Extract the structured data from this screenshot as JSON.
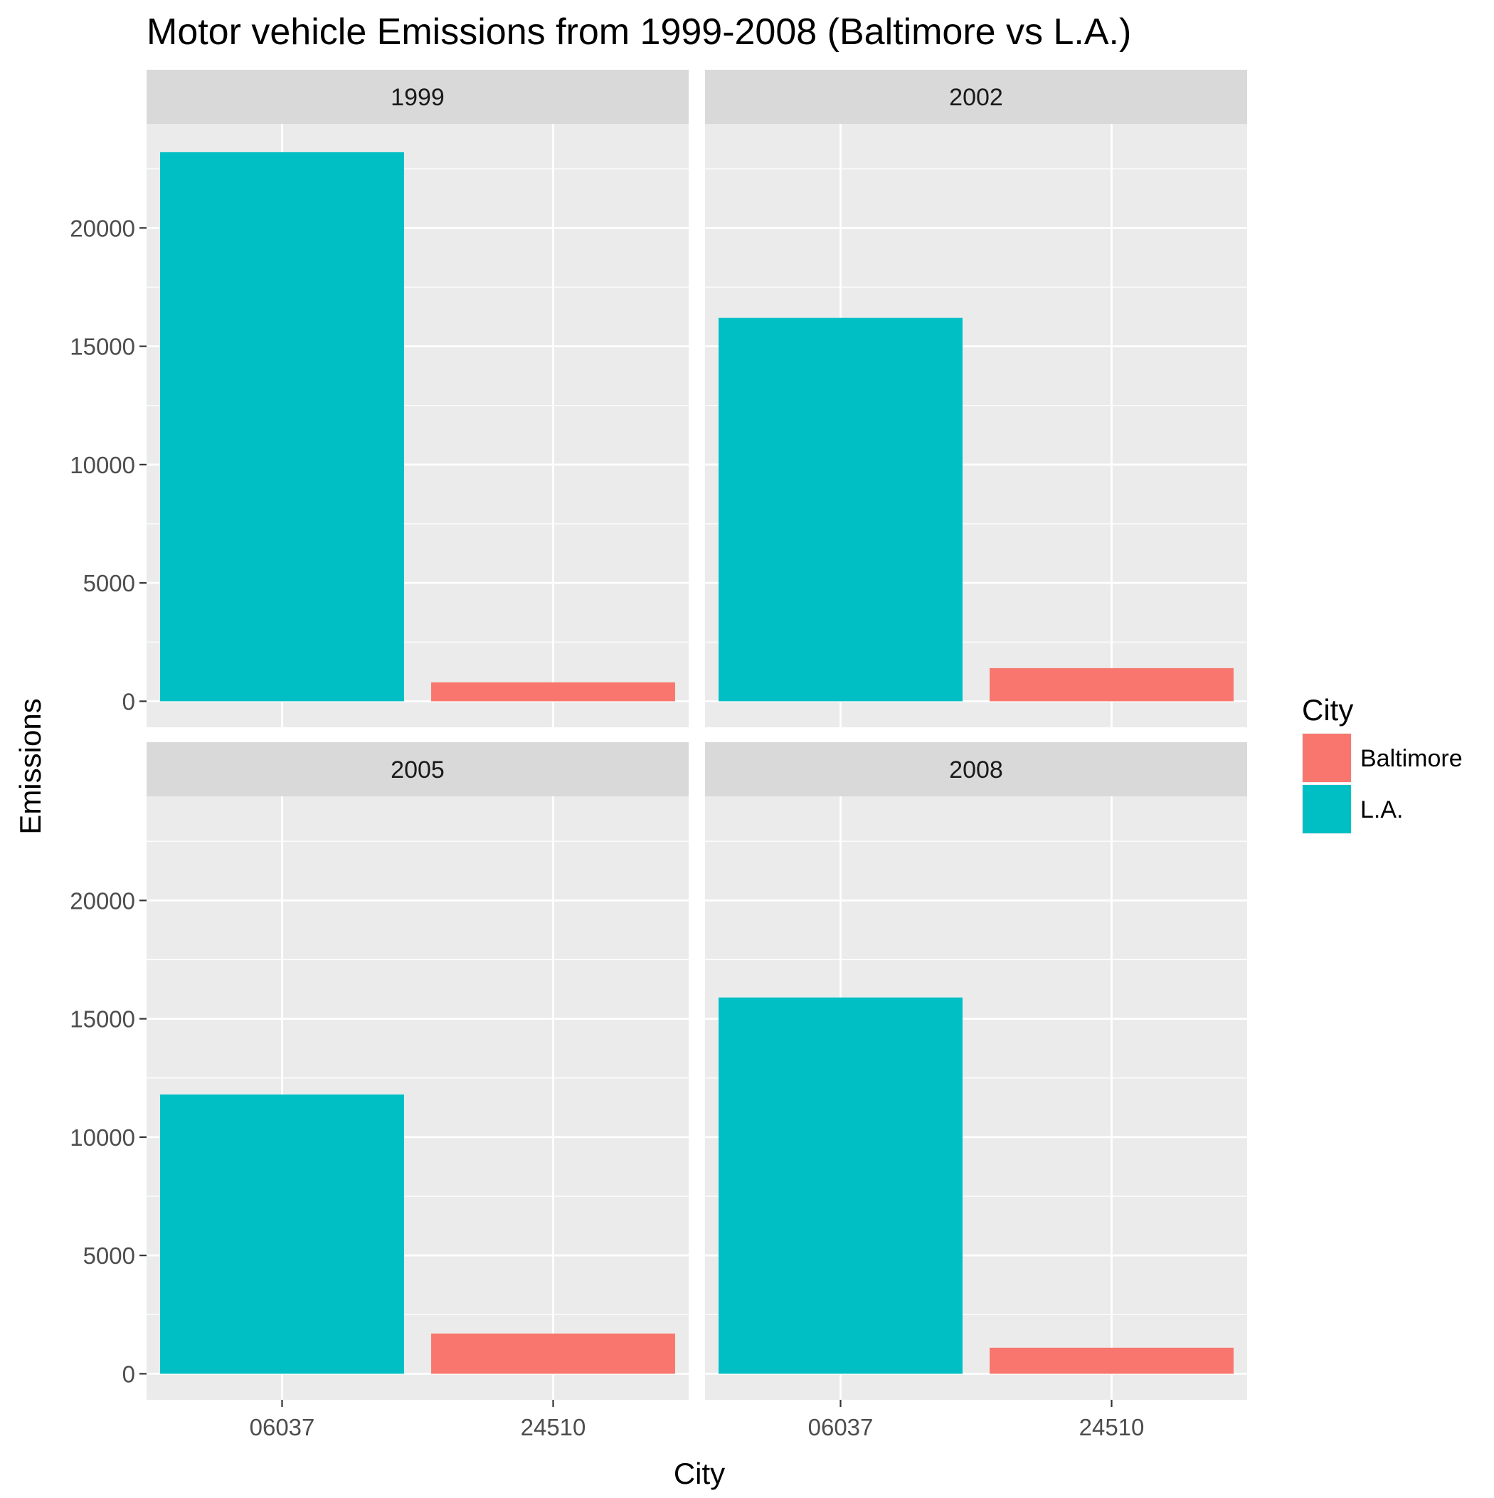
{
  "chart_data": {
    "type": "bar",
    "title": "Motor vehicle Emissions from 1999-2008 (Baltimore vs L.A.)",
    "xlabel": "City",
    "ylabel": "Emissions",
    "categories": [
      "06037",
      "24510"
    ],
    "category_city": [
      "L.A.",
      "Baltimore"
    ],
    "ylim": [
      -1100,
      24400
    ],
    "yticks": [
      0,
      5000,
      10000,
      15000,
      20000
    ],
    "grid": true,
    "legend": {
      "title": "City",
      "position": "right",
      "entries": [
        {
          "name": "Baltimore",
          "color": "#F8766D"
        },
        {
          "name": "L.A.",
          "color": "#00BFC4"
        }
      ]
    },
    "panels": [
      {
        "year": "1999",
        "values": [
          23200,
          800
        ]
      },
      {
        "year": "2002",
        "values": [
          16200,
          1400
        ]
      },
      {
        "year": "2005",
        "values": [
          11800,
          1700
        ]
      },
      {
        "year": "2008",
        "values": [
          15900,
          1100
        ]
      }
    ]
  }
}
